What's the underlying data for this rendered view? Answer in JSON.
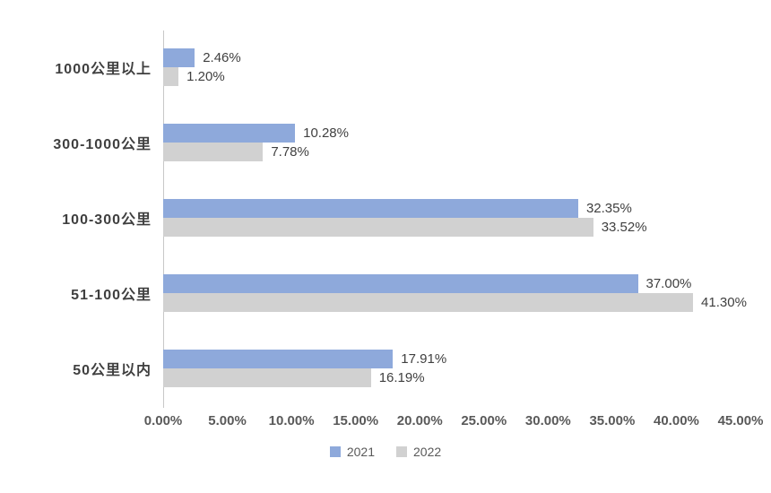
{
  "chart_data": {
    "type": "bar",
    "orientation": "horizontal",
    "title": "",
    "xlabel": "",
    "ylabel": "",
    "categories": [
      "1000公里以上",
      "300-1000公里",
      "100-300公里",
      "51-100公里",
      "50公里以内"
    ],
    "series": [
      {
        "name": "2021",
        "color": "#8ea9db",
        "values": [
          2.46,
          10.28,
          32.35,
          37.0,
          17.91
        ],
        "labels": [
          "2.46%",
          "10.28%",
          "32.35%",
          "37.00%",
          "17.91%"
        ]
      },
      {
        "name": "2022",
        "color": "#d1d1d1",
        "values": [
          1.2,
          7.78,
          33.52,
          41.3,
          16.19
        ],
        "labels": [
          "1.20%",
          "7.78%",
          "33.52%",
          "41.30%",
          "16.19%"
        ]
      }
    ],
    "x_axis": {
      "min": 0,
      "max": 45,
      "tick_step": 5,
      "ticks": [
        "0.00%",
        "5.00%",
        "10.00%",
        "15.00%",
        "20.00%",
        "25.00%",
        "30.00%",
        "35.00%",
        "40.00%",
        "45.00%"
      ]
    },
    "grid": false,
    "legend": [
      "2021",
      "2022"
    ],
    "legend_position": "bottom-center",
    "colors": {
      "axis_line": "#c8c8c8",
      "category_label": "#3f3f3f",
      "value_label": "#404040",
      "tick_label": "#595959",
      "legend_label": "#595959",
      "background": "#ffffff"
    }
  }
}
